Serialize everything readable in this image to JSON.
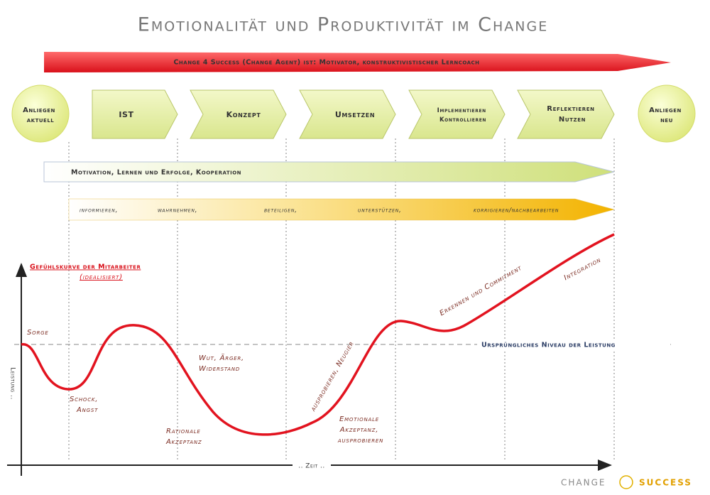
{
  "title": "Emotionalität und Produktivität im Change",
  "top_arrow": "Change 4 Success (Change Agent) ist: Motivator, konstruktivistischer Lerncoach",
  "start_circle": [
    "Anliegen",
    "aktuell"
  ],
  "end_circle": [
    "Anliegen",
    "neu"
  ],
  "phases": [
    [
      "IST"
    ],
    [
      "Konzept"
    ],
    [
      "Umsetzen"
    ],
    [
      "Implementieren",
      "Kontrollieren"
    ],
    [
      "Reflektieren",
      "Nutzen"
    ]
  ],
  "motivation_arrow": "Motivation, Lernen und Erfolge, Kooperation",
  "activities": [
    "informieren,",
    "wahrnehmen,",
    "beteiligen,",
    "unterstützen,",
    "korrigieren/nachbearbeiten"
  ],
  "curve": {
    "title": "Gefühlskurve der Mitarbeiter",
    "subtitle": "(idealisiert)",
    "labels": [
      [
        "Sorge"
      ],
      [
        "Schock,",
        "Angst"
      ],
      [
        "Wut, Ärger,",
        "Widerstand"
      ],
      [
        "Rationale",
        "Akzeptanz"
      ],
      [
        "Emotionale",
        "Akzeptanz,",
        "ausprobieren"
      ],
      [
        "ausprobieren, Neugier"
      ],
      [
        "Erkennen und Commitment"
      ],
      [
        "Integration"
      ]
    ],
    "baseline": "Ursprüngliches Niveau der Leistung",
    "y_axis": "Leistung ..",
    "x_axis": ".. Zeit .."
  },
  "footer": {
    "left": "CHANGE",
    "right": "SUCCESS"
  }
}
